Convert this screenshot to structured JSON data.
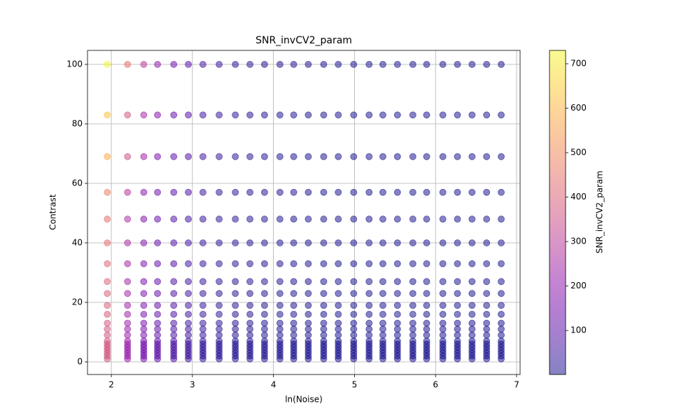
{
  "chart_data": {
    "type": "scatter",
    "title": "SNR_invCV2_param",
    "x_label": "ln(Noise)",
    "y_label": "Contrast",
    "colorbar_label": "SNR_invCV2_param",
    "colormap": "plasma",
    "alpha": 0.5,
    "grid": true,
    "xlim": [
      1.706,
      7.043
    ],
    "xticks": [
      2,
      3,
      4,
      5,
      6,
      7
    ],
    "ylim": [
      -4.24,
      104.7
    ],
    "yticks": [
      0,
      20,
      40,
      60,
      80,
      100
    ],
    "clim": [
      1,
      730
    ],
    "cticks": [
      100,
      200,
      300,
      400,
      500,
      600,
      700
    ],
    "x": [
      1.95,
      2.2,
      2.4,
      2.57,
      2.77,
      2.95,
      3.13,
      3.33,
      3.53,
      3.71,
      3.89,
      4.08,
      4.25,
      4.43,
      4.62,
      4.8,
      4.99,
      5.18,
      5.35,
      5.53,
      5.72,
      5.89,
      6.09,
      6.27,
      6.45,
      6.63,
      6.81
    ],
    "y": [
      1,
      2,
      3,
      4,
      5,
      6,
      7,
      9,
      11,
      13,
      16,
      19,
      23,
      27,
      33,
      40,
      48,
      57,
      69,
      83,
      100
    ],
    "values": [
      [
        366,
        222,
        149,
        107,
        71,
        51,
        35,
        24,
        17,
        12,
        9,
        6,
        5,
        4,
        3,
        2,
        2,
        2,
        1,
        1,
        1,
        1,
        1,
        1,
        1,
        1,
        1
      ],
      [
        366,
        222,
        149,
        107,
        71,
        51,
        35,
        24,
        17,
        12,
        9,
        6,
        5,
        4,
        3,
        2,
        2,
        2,
        1,
        1,
        1,
        1,
        1,
        1,
        1,
        1,
        1
      ],
      [
        366,
        222,
        149,
        107,
        71,
        51,
        35,
        24,
        17,
        12,
        9,
        6,
        5,
        4,
        3,
        2,
        2,
        2,
        1,
        1,
        1,
        1,
        1,
        1,
        1,
        1,
        1
      ],
      [
        366,
        222,
        149,
        107,
        71,
        51,
        35,
        24,
        17,
        12,
        9,
        6,
        5,
        4,
        3,
        2,
        2,
        2,
        1,
        1,
        1,
        1,
        1,
        1,
        1,
        1,
        1
      ],
      [
        366,
        222,
        149,
        107,
        71,
        51,
        35,
        24,
        17,
        12,
        9,
        6,
        5,
        4,
        3,
        2,
        2,
        2,
        1,
        1,
        1,
        1,
        1,
        1,
        1,
        1,
        1
      ],
      [
        366,
        222,
        149,
        107,
        71,
        51,
        35,
        24,
        17,
        12,
        9,
        6,
        5,
        4,
        3,
        2,
        2,
        2,
        1,
        1,
        1,
        1,
        1,
        1,
        1,
        1,
        1
      ],
      [
        373,
        226,
        152,
        109,
        72,
        51,
        36,
        24,
        17,
        12,
        9,
        6,
        5,
        4,
        3,
        2,
        2,
        2,
        1,
        1,
        1,
        1,
        1,
        1,
        1,
        1,
        1
      ],
      [
        373,
        226,
        152,
        109,
        72,
        51,
        36,
        24,
        17,
        12,
        9,
        6,
        5,
        4,
        3,
        2,
        2,
        2,
        1,
        1,
        1,
        1,
        1,
        1,
        1,
        1,
        1
      ],
      [
        381,
        231,
        155,
        111,
        74,
        52,
        36,
        25,
        17,
        12,
        9,
        6,
        5,
        4,
        3,
        2,
        2,
        2,
        1,
        1,
        1,
        1,
        1,
        1,
        1,
        1,
        1
      ],
      [
        381,
        231,
        155,
        111,
        74,
        52,
        36,
        25,
        17,
        12,
        9,
        6,
        5,
        4,
        3,
        2,
        2,
        2,
        1,
        1,
        1,
        1,
        1,
        1,
        1,
        1,
        1
      ],
      [
        388,
        235,
        158,
        113,
        75,
        53,
        37,
        25,
        17,
        12,
        9,
        6,
        5,
        4,
        3,
        2,
        2,
        2,
        1,
        1,
        1,
        1,
        1,
        1,
        1,
        1,
        1
      ],
      [
        395,
        240,
        161,
        115,
        77,
        54,
        38,
        26,
        18,
        12,
        9,
        6,
        5,
        4,
        3,
        2,
        2,
        2,
        1,
        1,
        1,
        1,
        1,
        1,
        1,
        1,
        1
      ],
      [
        402,
        244,
        164,
        118,
        78,
        55,
        38,
        26,
        18,
        13,
        9,
        6,
        5,
        4,
        3,
        2,
        2,
        2,
        1,
        1,
        1,
        1,
        1,
        1,
        1,
        1,
        1
      ],
      [
        410,
        249,
        167,
        120,
        79,
        56,
        39,
        27,
        18,
        13,
        9,
        7,
        5,
        4,
        3,
        2,
        2,
        2,
        1,
        1,
        1,
        1,
        1,
        1,
        1,
        1,
        1
      ],
      [
        417,
        253,
        170,
        122,
        81,
        57,
        40,
        27,
        19,
        13,
        10,
        7,
        5,
        4,
        3,
        2,
        2,
        2,
        1,
        1,
        1,
        1,
        1,
        1,
        1,
        1,
        1
      ],
      [
        432,
        262,
        176,
        126,
        84,
        59,
        41,
        28,
        19,
        13,
        10,
        7,
        5,
        4,
        3,
        2,
        2,
        2,
        1,
        1,
        1,
        1,
        1,
        1,
        1,
        1,
        1
      ],
      [
        439,
        266,
        179,
        128,
        85,
        60,
        42,
        29,
        20,
        14,
        10,
        7,
        5,
        4,
        3,
        2,
        2,
        2,
        1,
        1,
        1,
        1,
        1,
        1,
        1,
        1,
        1
      ],
      [
        476,
        288,
        193,
        139,
        92,
        65,
        45,
        31,
        21,
        15,
        11,
        7,
        6,
        4,
        3,
        3,
        2,
        2,
        2,
        1,
        1,
        1,
        1,
        1,
        1,
        1,
        1
      ],
      [
        585,
        355,
        238,
        171,
        113,
        80,
        55,
        38,
        26,
        18,
        13,
        9,
        7,
        5,
        4,
        3,
        2,
        2,
        2,
        1,
        1,
        1,
        1,
        1,
        1,
        1,
        1
      ],
      [
        622,
        377,
        253,
        181,
        120,
        85,
        59,
        40,
        27,
        19,
        14,
        10,
        7,
        5,
        4,
        3,
        2,
        2,
        2,
        1,
        1,
        1,
        1,
        1,
        1,
        1,
        1
      ],
      [
        730,
        443,
        297,
        213,
        141,
        100,
        69,
        47,
        32,
        22,
        16,
        11,
        8,
        6,
        4,
        3,
        3,
        2,
        2,
        2,
        1,
        1,
        1,
        1,
        1,
        1,
        1
      ]
    ]
  }
}
